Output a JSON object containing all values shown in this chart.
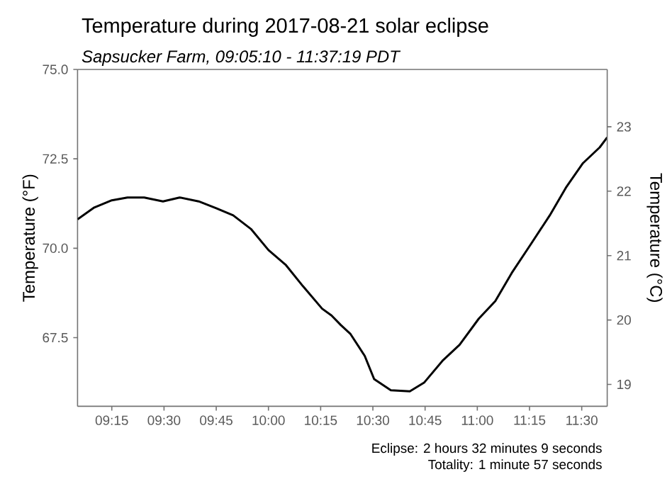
{
  "chart_data": {
    "type": "line",
    "title": "Temperature during 2017-08-21 solar eclipse",
    "subtitle": "Sapsucker Farm, 09:05:10 - 11:37:19 PDT",
    "ylabel": "Temperature (°F)",
    "y2label": "Temperature (°C)",
    "x": [
      9.086,
      9.166,
      9.25,
      9.325,
      9.405,
      9.495,
      9.575,
      9.666,
      9.75,
      9.831,
      9.916,
      10.0,
      10.082,
      10.165,
      10.257,
      10.302,
      10.347,
      10.393,
      10.461,
      10.506,
      10.586,
      10.677,
      10.745,
      10.836,
      10.915,
      11.007,
      11.086,
      11.165,
      11.256,
      11.347,
      11.427,
      11.506,
      11.586,
      11.622
    ],
    "series": [
      {
        "color": "#000000",
        "values": [
          70.81,
          71.14,
          71.34,
          71.42,
          71.42,
          71.31,
          71.42,
          71.31,
          71.12,
          70.92,
          70.54,
          69.95,
          69.54,
          68.94,
          68.31,
          68.12,
          67.85,
          67.6,
          66.99,
          66.34,
          66.03,
          66.0,
          66.24,
          66.87,
          67.3,
          68.03,
          68.52,
          69.31,
          70.11,
          70.92,
          71.72,
          72.38,
          72.82,
          73.1
        ]
      }
    ],
    "xlim": [
      9.086,
      11.622
    ],
    "xticks": [
      {
        "value": 9.25,
        "label": "09:15"
      },
      {
        "value": 9.5,
        "label": "09:30"
      },
      {
        "value": 9.75,
        "label": "09:45"
      },
      {
        "value": 10.0,
        "label": "10:00"
      },
      {
        "value": 10.25,
        "label": "10:15"
      },
      {
        "value": 10.5,
        "label": "10:30"
      },
      {
        "value": 10.75,
        "label": "10:45"
      },
      {
        "value": 11.0,
        "label": "11:00"
      },
      {
        "value": 11.25,
        "label": "11:15"
      },
      {
        "value": 11.5,
        "label": "11:30"
      }
    ],
    "ylim": [
      65.58,
      75.0
    ],
    "yticks": [
      67.5,
      {
        "value": 70,
        "label": "70.0"
      },
      72.5,
      {
        "value": 75,
        "label": "75.0"
      }
    ],
    "y2lim": [
      18.66,
      23.89
    ],
    "y2ticks": [
      19,
      20,
      21,
      22,
      23
    ],
    "annotations": [
      "Eclipse: 2 hours 32 minutes 9 seconds",
      "Totality: 1 minute 57 seconds"
    ],
    "grid": false,
    "marker": "none",
    "line_style": "solid"
  }
}
